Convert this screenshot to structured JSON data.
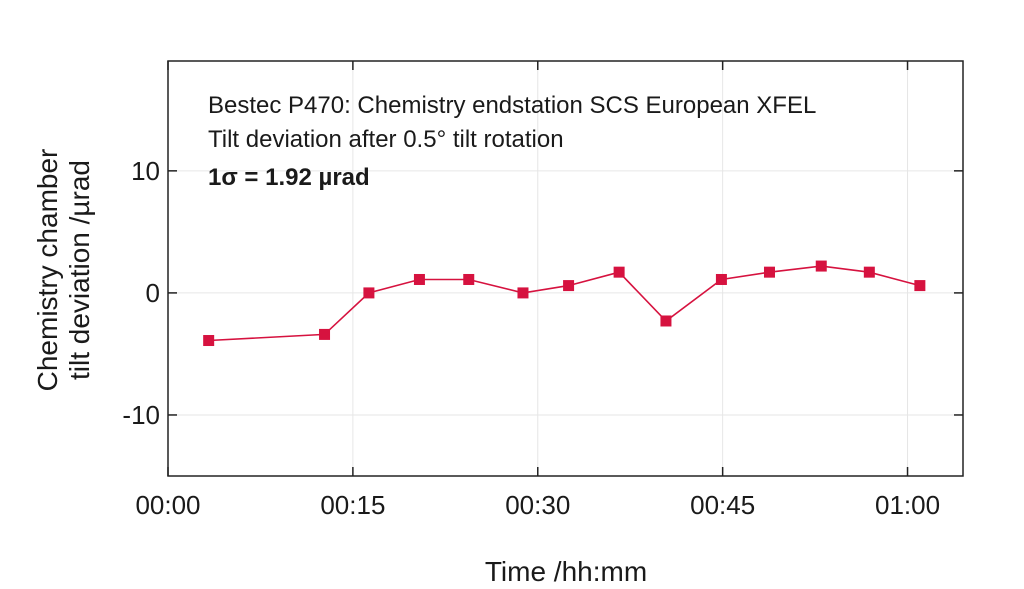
{
  "chart_data": {
    "type": "line",
    "title": "",
    "annotations": [
      "Bestec P470: Chemistry endstation SCS European XFEL",
      "Tilt deviation after 0.5° tilt rotation",
      "1σ = 1.92 µrad"
    ],
    "xlabel": "Time /hh:mm",
    "ylabel_lines": [
      "Chemistry chamber",
      "tilt deviation /µrad"
    ],
    "x_unit": "minutes",
    "xlim": [
      0,
      64.5
    ],
    "ylim": [
      -15,
      19
    ],
    "x_ticks": [
      0,
      15,
      30,
      45,
      60
    ],
    "x_tick_labels": [
      "00:00",
      "00:15",
      "00:30",
      "00:45",
      "01:00"
    ],
    "y_ticks": [
      -10,
      0,
      10
    ],
    "y_tick_labels": [
      "-10",
      "0",
      "10"
    ],
    "grid": true,
    "series": [
      {
        "name": "",
        "color": "#d6123f",
        "marker": "square",
        "points": [
          {
            "x": 3.3,
            "y": -3.9
          },
          {
            "x": 12.7,
            "y": -3.4
          },
          {
            "x": 16.3,
            "y": 0.0
          },
          {
            "x": 20.4,
            "y": 1.1
          },
          {
            "x": 24.4,
            "y": 1.1
          },
          {
            "x": 28.8,
            "y": 0.0
          },
          {
            "x": 32.5,
            "y": 0.6
          },
          {
            "x": 36.6,
            "y": 1.7
          },
          {
            "x": 40.4,
            "y": -2.3
          },
          {
            "x": 44.9,
            "y": 1.1
          },
          {
            "x": 48.8,
            "y": 1.7
          },
          {
            "x": 53.0,
            "y": 2.2
          },
          {
            "x": 56.9,
            "y": 1.7
          },
          {
            "x": 61.0,
            "y": 0.6
          }
        ]
      }
    ]
  }
}
